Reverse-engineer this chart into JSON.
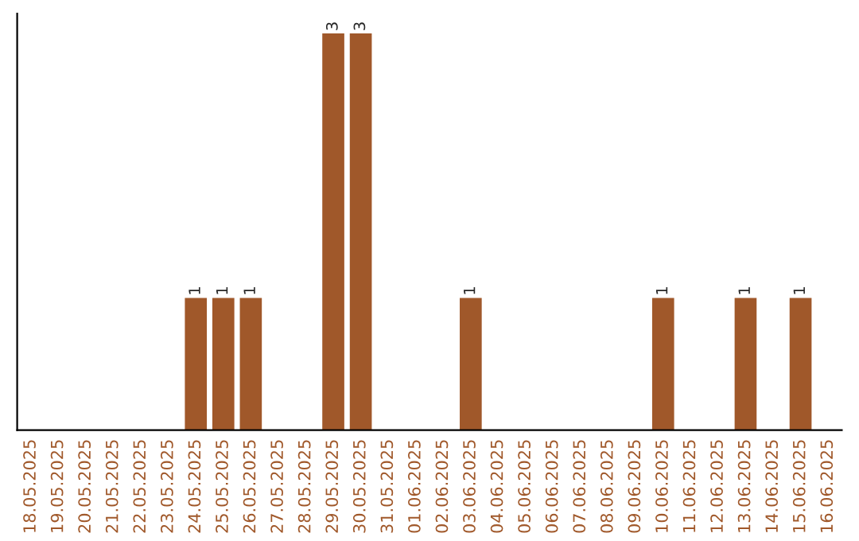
{
  "chart_data": {
    "type": "bar",
    "categories": [
      "18.05.2025",
      "19.05.2025",
      "20.05.2025",
      "21.05.2025",
      "22.05.2025",
      "23.05.2025",
      "24.05.2025",
      "25.05.2025",
      "26.05.2025",
      "27.05.2025",
      "28.05.2025",
      "29.05.2025",
      "30.05.2025",
      "31.05.2025",
      "01.06.2025",
      "02.06.2025",
      "03.06.2025",
      "04.06.2025",
      "05.06.2025",
      "06.06.2025",
      "07.06.2025",
      "08.06.2025",
      "09.06.2025",
      "10.06.2025",
      "11.06.2025",
      "12.06.2025",
      "13.06.2025",
      "14.06.2025",
      "15.06.2025",
      "16.06.2025"
    ],
    "values": [
      0,
      0,
      0,
      0,
      0,
      0,
      1,
      1,
      1,
      0,
      0,
      3,
      3,
      0,
      0,
      0,
      1,
      0,
      0,
      0,
      0,
      0,
      0,
      1,
      0,
      0,
      1,
      0,
      1,
      0
    ],
    "value_labels": [
      null,
      null,
      null,
      null,
      null,
      null,
      "1",
      "1",
      "1",
      null,
      null,
      "3",
      "3",
      null,
      null,
      null,
      "1",
      null,
      null,
      null,
      null,
      null,
      null,
      "1",
      null,
      null,
      "1",
      null,
      "1",
      null
    ],
    "color": "#a0582a",
    "grid": false,
    "legend": false
  }
}
